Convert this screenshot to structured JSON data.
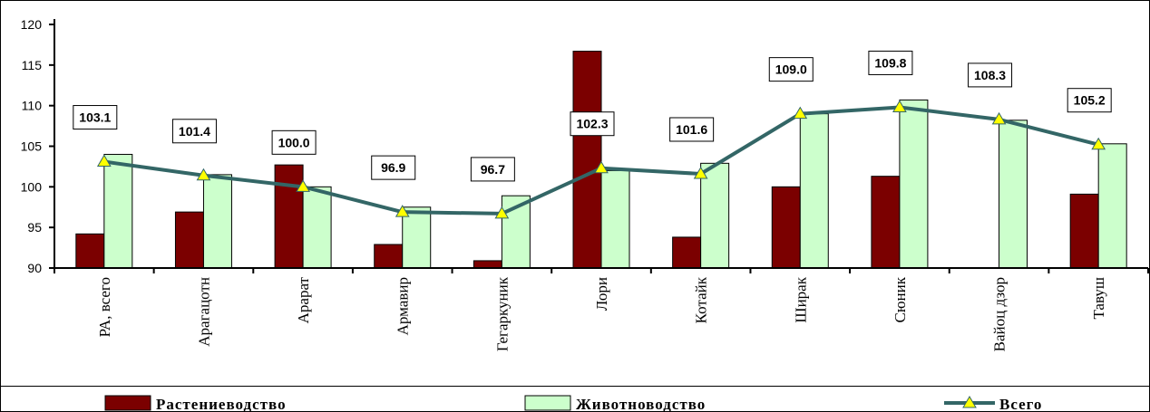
{
  "chart_data": {
    "type": "bar",
    "categories": [
      "РА, всего",
      "Арагацотн",
      "Арарат",
      "Армавир",
      "Гегаркуник",
      "Лори",
      "Котайк",
      "Ширак",
      "Сюник",
      "Вайоц дзор",
      "Тавуш"
    ],
    "series": [
      {
        "name": "Растениеводство",
        "type": "bar",
        "color": "#7b0000",
        "values": [
          94.2,
          96.9,
          102.7,
          92.9,
          90.9,
          116.7,
          93.8,
          100.0,
          101.3,
          null,
          99.1
        ]
      },
      {
        "name": "Животноводство",
        "type": "bar",
        "color": "#ccffcc",
        "values": [
          104.0,
          101.5,
          100.0,
          97.5,
          98.9,
          102.0,
          102.9,
          109.0,
          110.7,
          108.2,
          105.3
        ]
      },
      {
        "name": "Всего",
        "type": "line",
        "color": "#336666",
        "marker_color": "#ffff00",
        "values": [
          103.1,
          101.4,
          100.0,
          96.9,
          96.7,
          102.3,
          101.6,
          109.0,
          109.8,
          108.3,
          105.2
        ]
      }
    ],
    "data_labels": [
      "103.1",
      "101.4",
      "100.0",
      "96.9",
      "96.7",
      "102.3",
      "101.6",
      "109.0",
      "109.8",
      "108.3",
      "105.2"
    ],
    "yticks": [
      "90",
      "95",
      "100",
      "105",
      "110",
      "115",
      "120"
    ],
    "ylim": [
      90,
      120
    ],
    "grid": false,
    "legend_position": "bottom"
  }
}
